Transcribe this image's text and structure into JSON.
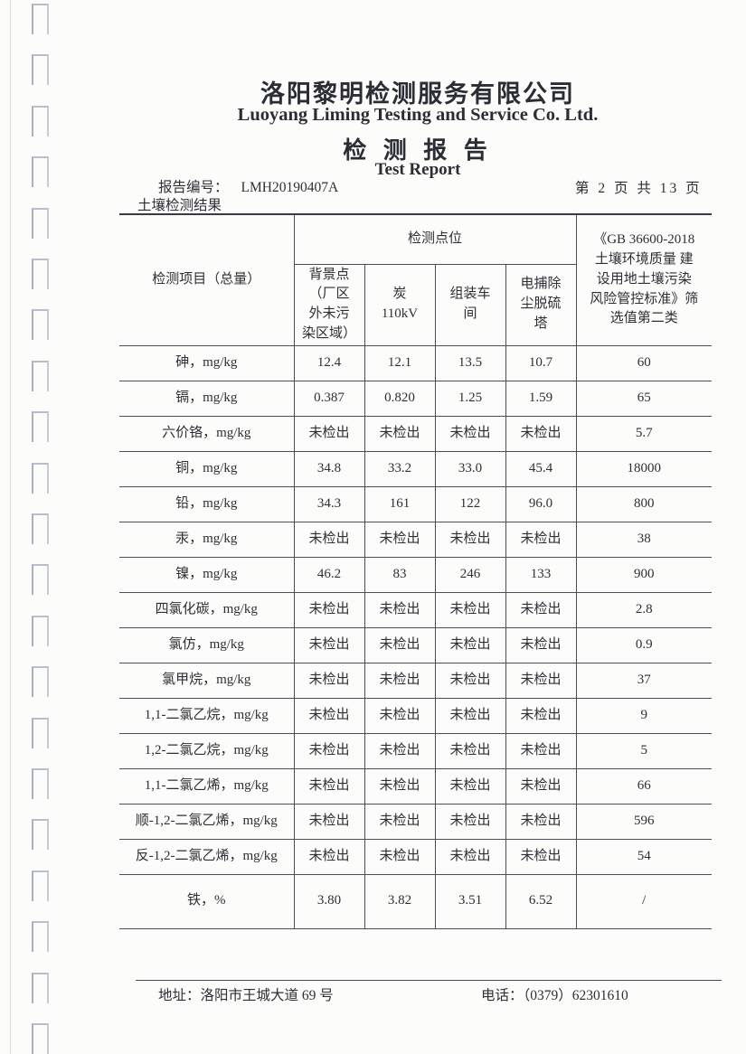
{
  "header": {
    "company_cn": "洛阳黎明检测服务有限公司",
    "company_en": "Luoyang Liming Testing and Service Co. Ltd.",
    "report_title_cn": "检 测 报 告",
    "report_title_en": "Test Report",
    "report_no_label": "报告编号：",
    "report_no": "LMH20190407A",
    "page_indicator": "第 2 页 共 13 页",
    "section_title": "土壤检测结果"
  },
  "table": {
    "item_header": "检测项目（总量）",
    "points_group_header": "检测点位",
    "point_headers": [
      "背景点\n（厂区\n外未污\n染区域）",
      "炭\n110kV",
      "组装车\n间",
      "电捕除\n尘脱硫\n塔"
    ],
    "standard_header": "《GB 36600-2018\n土壤环境质量 建\n设用地土壤污染\n风险管控标准》筛\n选值第二类",
    "rows": [
      {
        "item": "砷，mg/kg",
        "values": [
          "12.4",
          "12.1",
          "13.5",
          "10.7"
        ],
        "standard": "60"
      },
      {
        "item": "镉，mg/kg",
        "values": [
          "0.387",
          "0.820",
          "1.25",
          "1.59"
        ],
        "standard": "65"
      },
      {
        "item": "六价铬，mg/kg",
        "values": [
          "未检出",
          "未检出",
          "未检出",
          "未检出"
        ],
        "standard": "5.7"
      },
      {
        "item": "铜，mg/kg",
        "values": [
          "34.8",
          "33.2",
          "33.0",
          "45.4"
        ],
        "standard": "18000"
      },
      {
        "item": "铅，mg/kg",
        "values": [
          "34.3",
          "161",
          "122",
          "96.0"
        ],
        "standard": "800"
      },
      {
        "item": "汞，mg/kg",
        "values": [
          "未检出",
          "未检出",
          "未检出",
          "未检出"
        ],
        "standard": "38"
      },
      {
        "item": "镍，mg/kg",
        "values": [
          "46.2",
          "83",
          "246",
          "133"
        ],
        "standard": "900"
      },
      {
        "item": "四氯化碳，mg/kg",
        "values": [
          "未检出",
          "未检出",
          "未检出",
          "未检出"
        ],
        "standard": "2.8"
      },
      {
        "item": "氯仿，mg/kg",
        "values": [
          "未检出",
          "未检出",
          "未检出",
          "未检出"
        ],
        "standard": "0.9"
      },
      {
        "item": "氯甲烷，mg/kg",
        "values": [
          "未检出",
          "未检出",
          "未检出",
          "未检出"
        ],
        "standard": "37"
      },
      {
        "item": "1,1-二氯乙烷，mg/kg",
        "values": [
          "未检出",
          "未检出",
          "未检出",
          "未检出"
        ],
        "standard": "9"
      },
      {
        "item": "1,2-二氯乙烷，mg/kg",
        "values": [
          "未检出",
          "未检出",
          "未检出",
          "未检出"
        ],
        "standard": "5"
      },
      {
        "item": "1,1-二氯乙烯，mg/kg",
        "values": [
          "未检出",
          "未检出",
          "未检出",
          "未检出"
        ],
        "standard": "66"
      },
      {
        "item": "顺-1,2-二氯乙烯，mg/kg",
        "values": [
          "未检出",
          "未检出",
          "未检出",
          "未检出"
        ],
        "standard": "596"
      },
      {
        "item": "反-1,2-二氯乙烯，mg/kg",
        "values": [
          "未检出",
          "未检出",
          "未检出",
          "未检出"
        ],
        "standard": "54"
      },
      {
        "item": "铁，%",
        "values": [
          "3.80",
          "3.82",
          "3.51",
          "6.52"
        ],
        "standard": "/",
        "tall": true
      }
    ]
  },
  "footer": {
    "address_label": "地址：",
    "address": "洛阳市王城大道 69 号",
    "phone_label": "电话：",
    "phone": "（0379）62301610"
  },
  "colors": {
    "paper": "#fcfcfa",
    "ink": "#2d2f36",
    "table_line": "#4b4e57",
    "binding_hole": "#b7bdca"
  }
}
